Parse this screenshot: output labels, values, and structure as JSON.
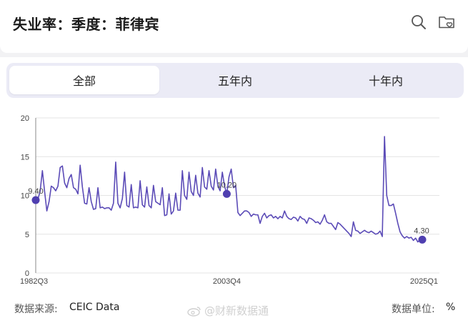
{
  "header": {
    "title": "失业率：季度：菲律宾",
    "icons": [
      "search-icon",
      "folder-heart-icon"
    ]
  },
  "tabs": [
    {
      "label": "全部",
      "active": true
    },
    {
      "label": "五年内",
      "active": false
    },
    {
      "label": "十年内",
      "active": false
    }
  ],
  "footer": {
    "source_label": "数据来源:",
    "source_value": "CEIC Data",
    "unit_label": "数据单位:",
    "unit_value": "%"
  },
  "watermark": "@财新数据通",
  "colors": {
    "line": "#5b4bb7",
    "marker": "#4f3fb0",
    "tab_bg": "#ebebf6"
  },
  "chart_data": {
    "type": "line",
    "title": "",
    "xlabel": "",
    "ylabel": "",
    "ylim": [
      0,
      20
    ],
    "yticks": [
      0,
      5,
      10,
      15,
      20
    ],
    "xtick_labels": [
      "1982Q3",
      "2003Q4",
      "2025Q1"
    ],
    "grid": true,
    "series": [
      {
        "values": [
          9.4,
          9.5,
          10.6,
          13.2,
          10.5,
          8.0,
          9.2,
          11.2,
          11.0,
          10.6,
          11.2,
          13.6,
          13.8,
          11.6,
          11.0,
          12.2,
          12.7,
          11.0,
          10.8,
          10.2,
          13.9,
          11.1,
          9.0,
          8.9,
          11.0,
          9.2,
          8.2,
          8.3,
          11.0,
          8.4,
          8.5,
          8.3,
          8.4,
          8.4,
          8.1,
          9.0,
          14.3,
          9.0,
          8.4,
          9.6,
          13.0,
          8.7,
          8.5,
          11.4,
          8.4,
          8.5,
          8.4,
          11.9,
          8.8,
          8.5,
          11.1,
          8.7,
          8.4,
          11.3,
          9.2,
          9.0,
          8.8,
          11.0,
          7.4,
          7.5,
          10.2,
          7.6,
          8.0,
          10.3,
          8.1,
          8.1,
          13.2,
          10.0,
          9.5,
          13.0,
          10.5,
          10.0,
          12.6,
          10.3,
          9.8,
          13.6,
          11.1,
          10.8,
          13.2,
          11.2,
          10.7,
          13.4,
          11.2,
          10.6,
          13.0,
          11.2,
          10.2,
          12.4,
          13.4,
          11.0,
          11.3,
          7.8,
          7.4,
          7.7,
          8.0,
          8.0,
          7.8,
          7.3,
          7.6,
          7.5,
          7.5,
          6.4,
          7.3,
          7.7,
          7.1,
          7.4,
          7.5,
          7.1,
          7.3,
          7.0,
          7.3,
          7.1,
          8.0,
          7.3,
          7.0,
          6.9,
          7.2,
          7.1,
          6.7,
          7.3,
          7.0,
          6.9,
          6.4,
          7.1,
          7.0,
          6.8,
          6.5,
          6.6,
          6.3,
          6.8,
          7.5,
          6.6,
          6.4,
          6.4,
          6.0,
          5.6,
          6.5,
          6.3,
          6.0,
          5.7,
          5.4,
          5.1,
          4.7,
          6.6,
          5.5,
          5.4,
          5.1,
          5.3,
          5.5,
          5.3,
          5.2,
          5.4,
          5.2,
          5.0,
          5.1,
          5.4,
          4.7,
          17.6,
          10.0,
          8.7,
          8.7,
          8.9,
          7.7,
          6.4,
          5.3,
          4.8,
          4.5,
          4.7,
          4.5,
          4.6,
          4.2,
          4.5,
          4.0,
          4.3,
          4.3
        ],
        "start_value": 9.4,
        "highlighted_points": [
          {
            "x": "1982Q3",
            "value": 9.4,
            "label": "9.40"
          },
          {
            "x": "2003Q4",
            "value": 10.2,
            "label": "10.20"
          },
          {
            "x": "2025Q1",
            "value": 4.3,
            "label": "4.30"
          }
        ]
      }
    ]
  }
}
